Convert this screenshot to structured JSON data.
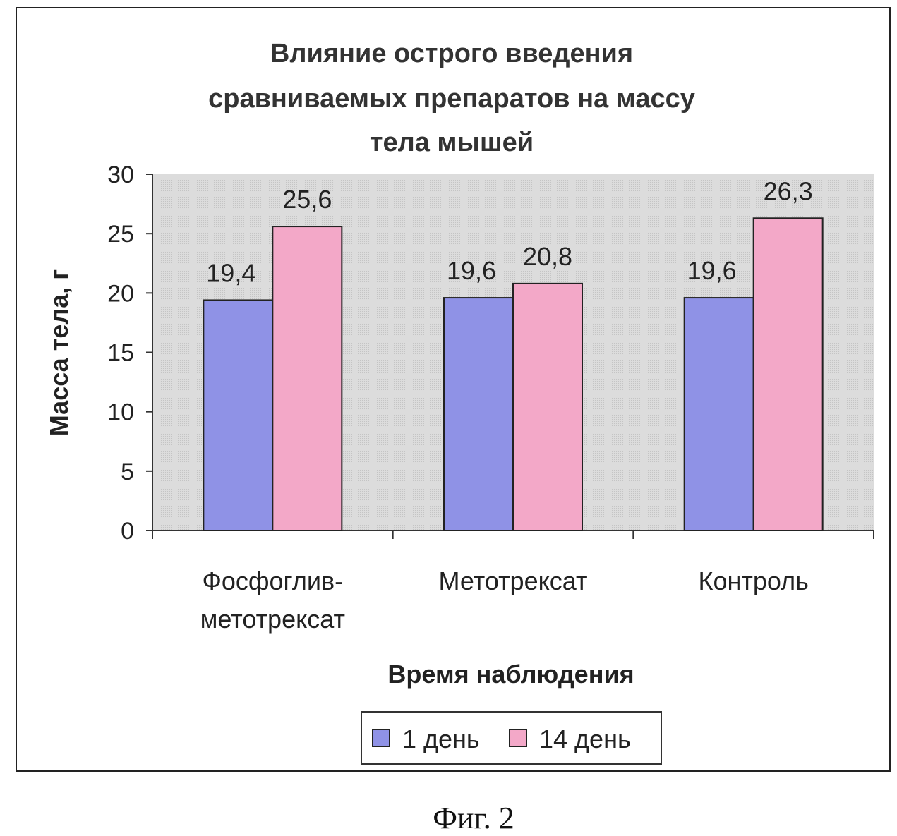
{
  "caption": "Фиг. 2",
  "chart_data": {
    "type": "bar",
    "title_lines": [
      "Влияние острого введения",
      "сравниваемых препаратов на массу",
      "тела мышей"
    ],
    "xlabel": "Время наблюдения",
    "ylabel": "Масса тела, г",
    "ylim": [
      0,
      30
    ],
    "yticks": [
      0,
      5,
      10,
      15,
      20,
      25,
      30
    ],
    "categories": [
      [
        "Фосфоглив-",
        "метотрексат"
      ],
      [
        "Метотрексат"
      ],
      [
        "Контроль"
      ]
    ],
    "series": [
      {
        "name": "1 день",
        "color": "#8f92e6",
        "values": [
          19.4,
          19.6,
          19.6
        ],
        "labels": [
          "19,4",
          "19,6",
          "19,6"
        ]
      },
      {
        "name": "14 день",
        "color": "#f3a8c8",
        "values": [
          25.6,
          20.8,
          26.3
        ],
        "labels": [
          "25,6",
          "20,8",
          "26,3"
        ]
      }
    ],
    "grid": false,
    "plot_background": "#d9d9d9",
    "legend_position": "bottom"
  }
}
